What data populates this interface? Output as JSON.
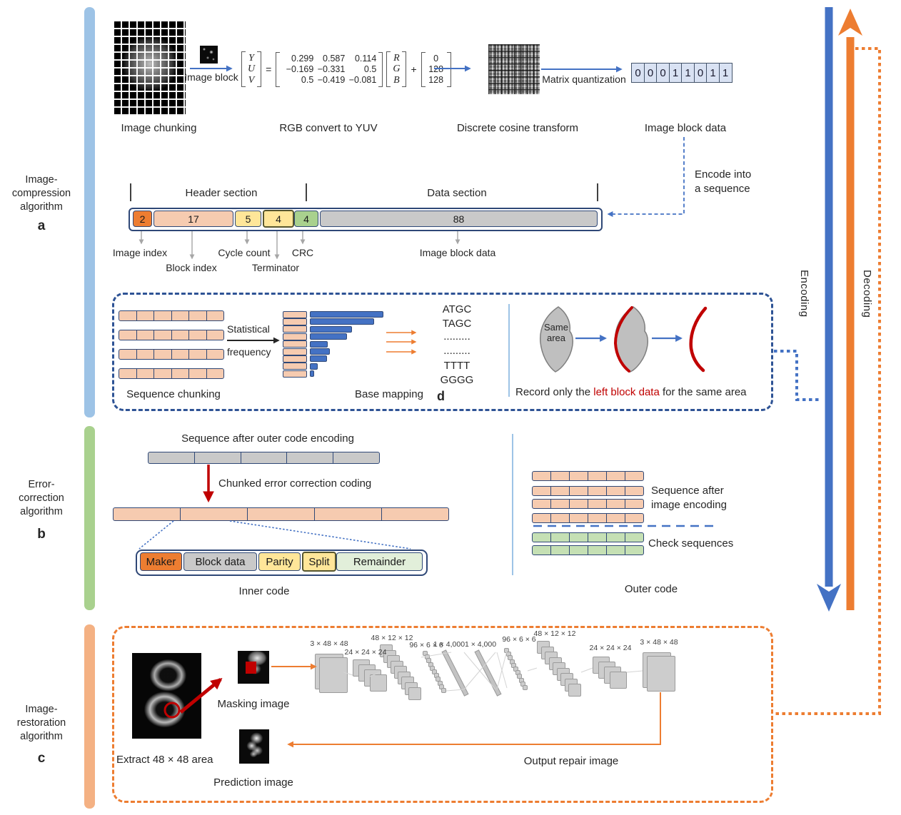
{
  "sidebar": {
    "sections": [
      {
        "lines": [
          "Image-",
          "compression",
          "algorithm"
        ],
        "letter": "a",
        "bar_color": "#9DC3E6"
      },
      {
        "lines": [
          "Error-",
          "correction",
          "algorithm"
        ],
        "letter": "b",
        "bar_color": "#A9D18E"
      },
      {
        "lines": [
          "Image-",
          "restoration",
          "algorithm"
        ],
        "letter": "c",
        "bar_color": "#F4B183"
      }
    ]
  },
  "rails": {
    "encoding": "Encoding",
    "decoding": "Decoding",
    "encoding_color": "#4472C4",
    "decoding_color": "#ED7D31"
  },
  "panel_a": {
    "image_chunking_label": "Image chunking",
    "image_block_label": "Image block",
    "formula": {
      "label": "RGB convert to YUV",
      "yuv": [
        "Y",
        "U",
        "V"
      ],
      "eq": "=",
      "matrix": [
        [
          "0.299",
          "0.587",
          "0.114"
        ],
        [
          "−0.169",
          "−0.331",
          "0.5"
        ],
        [
          "0.5",
          "−0.419",
          "−0.081"
        ]
      ],
      "rgb": [
        "R",
        "G",
        "B"
      ],
      "plus": "+",
      "offsets": [
        "0",
        "128",
        "128"
      ]
    },
    "dct_label": "Discrete cosine transform",
    "quantization_label": "Matrix quantization",
    "bits": [
      "0",
      "0",
      "0",
      "1",
      "1",
      "0",
      "1",
      "1"
    ],
    "block_data_label": "Image block data",
    "encode_lines": [
      "Encode into",
      "a sequence"
    ],
    "header_section_label": "Header section",
    "data_section_label": "Data section",
    "segments": [
      {
        "value": "2",
        "label": "Image index",
        "color": "#ED7D31"
      },
      {
        "value": "17",
        "label": "Block index",
        "color": "#F6CBB0"
      },
      {
        "value": "5",
        "label": "Cycle count",
        "color": "#FFE699"
      },
      {
        "value": "4",
        "label": "Terminator",
        "color": "#FFE699"
      },
      {
        "value": "4",
        "label": "CRC",
        "color": "#A9D18E"
      },
      {
        "value": "88",
        "label": "Image block data",
        "color": "#C9C9C9"
      }
    ]
  },
  "panel_d": {
    "letter": "d",
    "sequence_chunking_label": "Sequence chunking",
    "statistical_lines": [
      "Statistical",
      "frequency"
    ],
    "base_mapping_label": "Base mapping",
    "histogram": [
      101,
      88,
      57,
      50,
      23,
      26,
      22,
      9,
      4
    ],
    "dna": [
      "ATGC",
      "TAGC",
      ".........",
      ".........",
      "TTTT",
      "GGGG"
    ],
    "same_area_label": "Same area",
    "record": {
      "pre": "Record only the ",
      "highlight": "left block data",
      "post": " for the same area"
    }
  },
  "panel_b": {
    "outer_encoding_label": "Sequence after outer code encoding",
    "chunked_label": "Chunked error correction coding",
    "inner_code_label": "Inner code",
    "inner_segments": [
      {
        "label": "Maker",
        "color": "#ED7D31"
      },
      {
        "label": "Block data",
        "color": "#C9C9C9"
      },
      {
        "label": "Parity",
        "color": "#FFE699"
      },
      {
        "label": "Split",
        "color": "#FFE699"
      },
      {
        "label": "Remainder",
        "color": "#E2EFDA"
      }
    ],
    "image_encoding_lines": [
      "Sequence after",
      "image encoding"
    ],
    "check_sequences_label": "Check sequences",
    "outer_code_label": "Outer code"
  },
  "panel_c": {
    "extract_label": "Extract 48 × 48 area",
    "masking_label": "Masking image",
    "prediction_label": "Prediction image",
    "output_label": "Output repair image",
    "nn_layers": [
      "3 × 48 × 48",
      "24 × 24 × 24",
      "48 × 12 × 12",
      "96 × 6 × 6",
      "1 × 4,000",
      "1 × 4,000",
      "96 × 6 × 6",
      "48 × 12 × 12",
      "24 × 24 × 24",
      "3 × 48 × 48"
    ]
  }
}
